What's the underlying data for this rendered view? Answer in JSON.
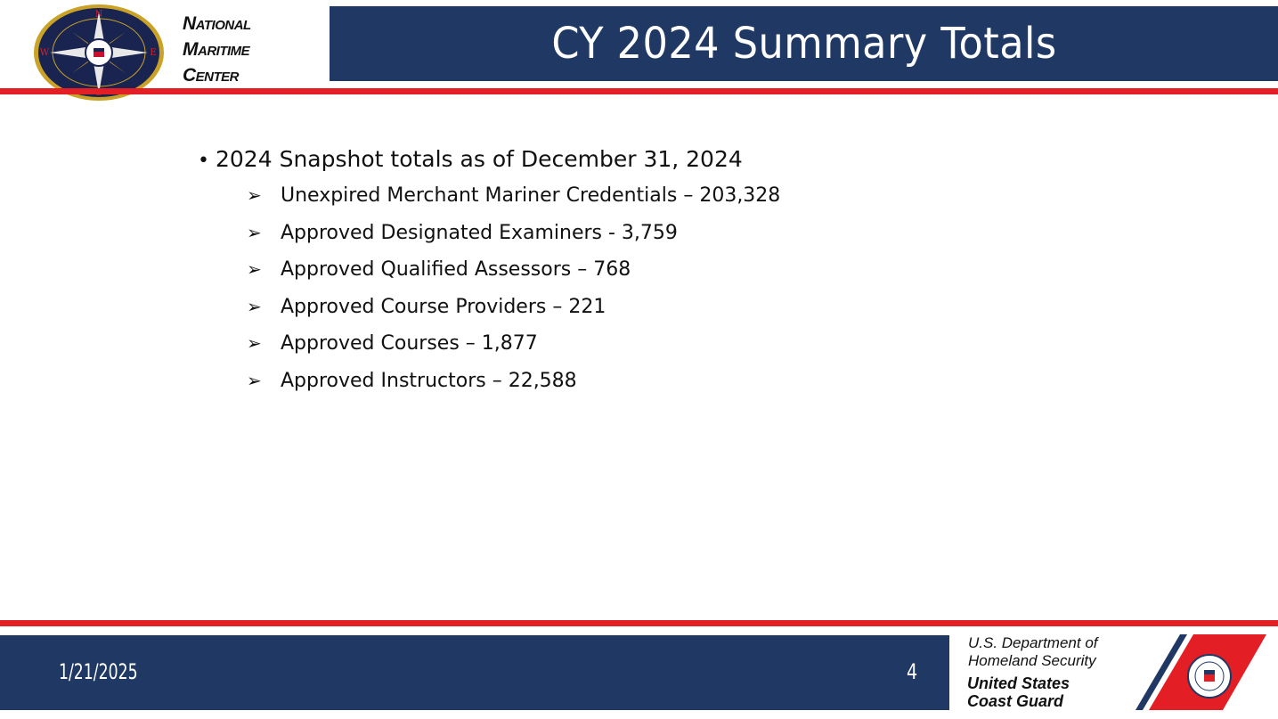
{
  "header": {
    "org_name": [
      "National",
      "Maritime",
      "Center"
    ],
    "title": "CY 2024 Summary Totals",
    "logo_icon": "compass-rose-seal-icon",
    "logo_letters": [
      "N",
      "E",
      "S",
      "W"
    ]
  },
  "content": {
    "main_bullet": "2024 Snapshot totals as of December 31, 2024",
    "sub_items": [
      "Unexpired Merchant Mariner Credentials – 203,328",
      "Approved Designated Examiners - 3,759",
      "Approved Qualified Assessors – 768",
      "Approved Course Providers – 221",
      "Approved Courses – 1,877",
      "Approved Instructors – 22,588"
    ]
  },
  "footer": {
    "date": "1/21/2025",
    "page_number": "4",
    "department": [
      "U.S. Department of",
      "Homeland Security"
    ],
    "agency": [
      "United States",
      "Coast Guard"
    ],
    "emblem_icon": "coast-guard-racing-stripe-icon"
  },
  "colors": {
    "navy": "#1f3864",
    "red": "#e31e24",
    "gold": "#c9a227"
  }
}
